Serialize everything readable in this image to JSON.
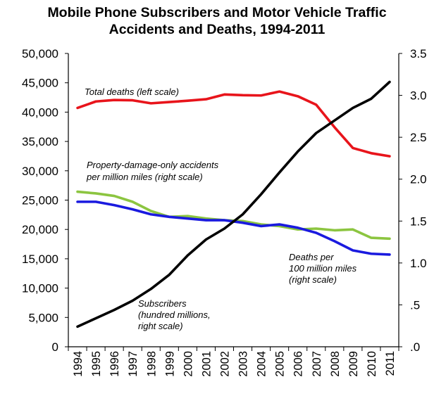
{
  "chart_data": {
    "type": "line",
    "title": [
      "Mobile Phone Subscribers and Motor Vehicle Traffic",
      "Accidents and Deaths, 1994-2011"
    ],
    "x": [
      "1994",
      "1995",
      "1996",
      "1997",
      "1998",
      "1999",
      "2000",
      "2001",
      "2002",
      "2003",
      "2004",
      "2005",
      "2006",
      "2007",
      "2008",
      "2009",
      "2010",
      "2011"
    ],
    "left_axis": {
      "ylim": [
        0,
        50000
      ],
      "tick_labels": [
        "0",
        "5,000",
        "10,000",
        "15,000",
        "20,000",
        "25,000",
        "30,000",
        "35,000",
        "40,000",
        "45,000",
        "50,000"
      ]
    },
    "right_axis": {
      "ylim": [
        0,
        3.5
      ],
      "tick_labels": [
        ".0",
        ".5",
        "1.0",
        "1.5",
        "2.0",
        "2.5",
        "3.0",
        "3.5"
      ]
    },
    "series": [
      {
        "name": "Total deaths",
        "axis": "left",
        "color": "#e8141b",
        "label": [
          "Total deaths (left scale)"
        ],
        "values": [
          40716,
          41817,
          42065,
          42013,
          41501,
          41717,
          41945,
          42196,
          43005,
          42884,
          42836,
          43510,
          42708,
          41259,
          37423,
          33883,
          32999,
          32479
        ]
      },
      {
        "name": "Property-damage-only accidents per million miles",
        "axis": "right",
        "color": "#8cc540",
        "label": [
          "Property-damage-only accidents",
          "per million miles (right scale)"
        ],
        "values": [
          1.85,
          1.83,
          1.8,
          1.73,
          1.62,
          1.55,
          1.56,
          1.53,
          1.51,
          1.5,
          1.46,
          1.44,
          1.4,
          1.41,
          1.39,
          1.4,
          1.3,
          1.29
        ]
      },
      {
        "name": "Deaths per 100 million miles",
        "axis": "right",
        "color": "#1a1adf",
        "label": [
          "Deaths per",
          "100 million miles",
          "(right scale)"
        ],
        "values": [
          1.73,
          1.73,
          1.69,
          1.64,
          1.58,
          1.55,
          1.53,
          1.51,
          1.51,
          1.48,
          1.44,
          1.46,
          1.42,
          1.36,
          1.26,
          1.15,
          1.11,
          1.1
        ]
      },
      {
        "name": "Subscribers",
        "axis": "right",
        "color": "#000000",
        "label": [
          "Subscribers",
          "(hundred millions,",
          "right scale)"
        ],
        "values": [
          0.24,
          0.34,
          0.44,
          0.55,
          0.69,
          0.86,
          1.09,
          1.28,
          1.41,
          1.58,
          1.82,
          2.08,
          2.33,
          2.55,
          2.7,
          2.85,
          2.96,
          3.16
        ]
      }
    ]
  }
}
